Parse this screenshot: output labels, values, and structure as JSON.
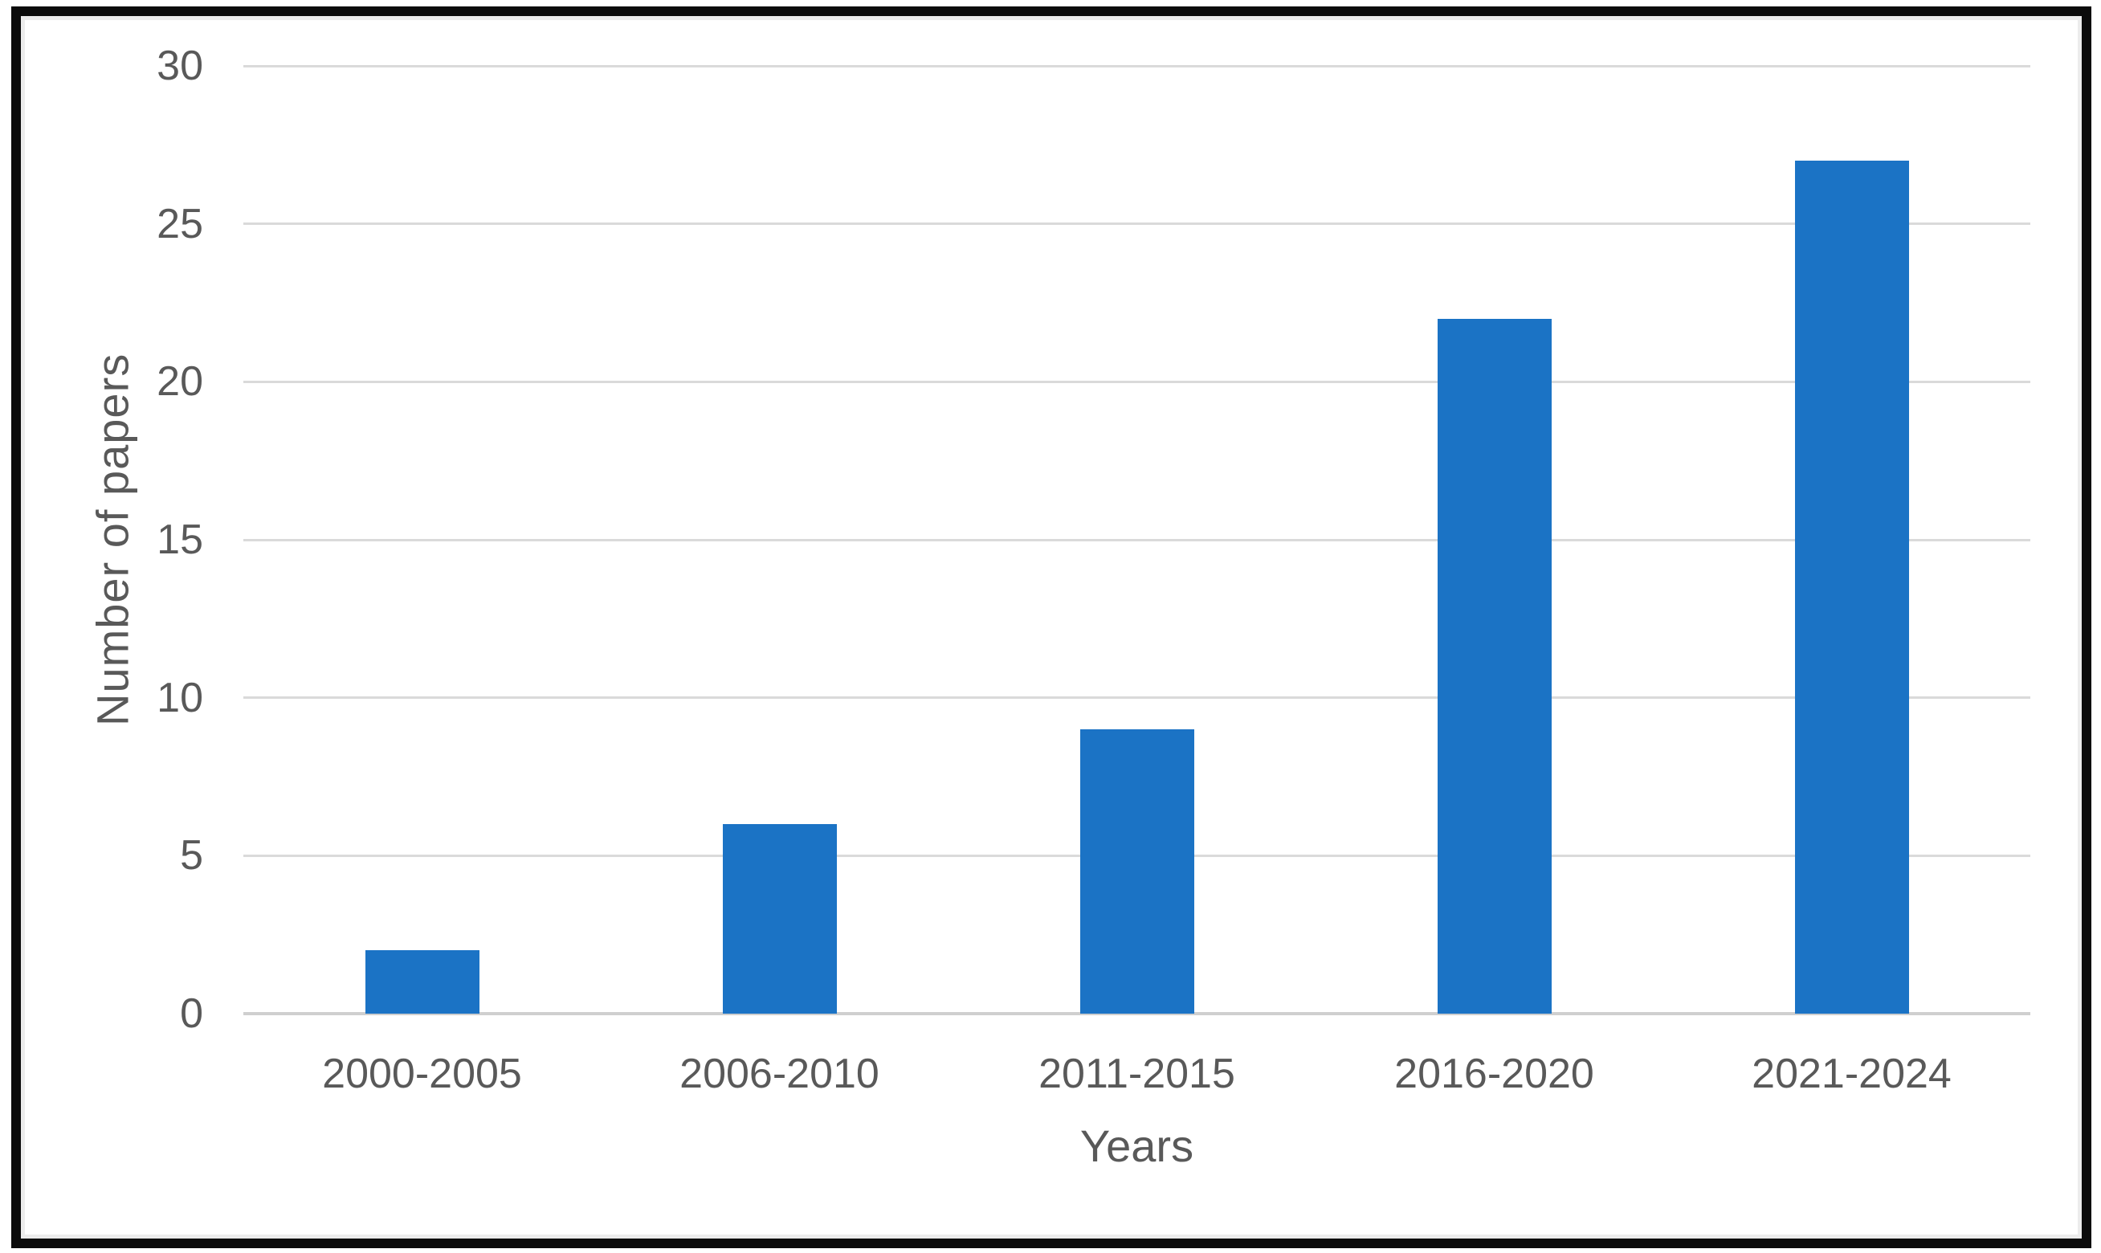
{
  "chart_data": {
    "type": "bar",
    "title": "",
    "categories": [
      "2000-2005",
      "2006-2010",
      "2011-2015",
      "2016-2020",
      "2021-2024"
    ],
    "values": [
      2,
      6,
      9,
      22,
      27
    ],
    "xlabel": "Years",
    "ylabel": "Number of papers",
    "ylim": [
      0,
      30
    ],
    "yticks": [
      0,
      5,
      10,
      15,
      20,
      25,
      30
    ],
    "grid": "horizontal",
    "legend": "none",
    "colors": {
      "bar": "#1B73C5",
      "gridline": "#DADADA",
      "axis_line": "#CFCFCF",
      "text": "#595959",
      "frame_border": "#0B0B0B",
      "inner_edge": "#ECECEC",
      "background": "#FFFFFF"
    }
  }
}
